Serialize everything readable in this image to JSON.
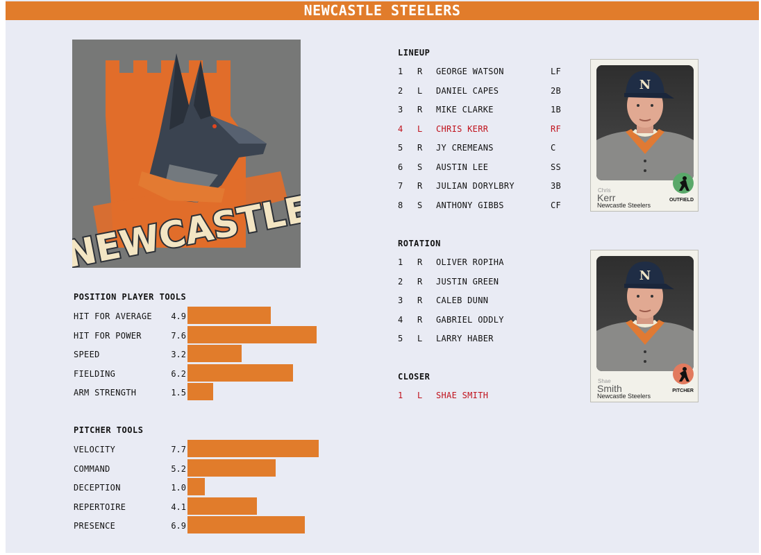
{
  "header": {
    "title": "NEWCASTLE STEELERS"
  },
  "logo": {
    "text": "NEWCASTLE"
  },
  "position_tools": {
    "title": "POSITION PLAYER TOOLS",
    "items": [
      {
        "label": "HIT FOR AVERAGE",
        "value": "4.9"
      },
      {
        "label": "HIT FOR POWER",
        "value": "7.6"
      },
      {
        "label": "SPEED",
        "value": "3.2"
      },
      {
        "label": "FIELDING",
        "value": "6.2"
      },
      {
        "label": "ARM STRENGTH",
        "value": "1.5"
      }
    ]
  },
  "pitcher_tools": {
    "title": "PITCHER TOOLS",
    "items": [
      {
        "label": "VELOCITY",
        "value": "7.7"
      },
      {
        "label": "COMMAND",
        "value": "5.2"
      },
      {
        "label": "DECEPTION",
        "value": "1.0"
      },
      {
        "label": "REPERTOIRE",
        "value": "4.1"
      },
      {
        "label": "PRESENCE",
        "value": "6.9"
      }
    ]
  },
  "lineup": {
    "title": "LINEUP",
    "rows": [
      {
        "num": "1",
        "hand": "R",
        "name": "GEORGE WATSON",
        "pos": "LF",
        "highlight": false
      },
      {
        "num": "2",
        "hand": "L",
        "name": "DANIEL CAPES",
        "pos": "2B",
        "highlight": false
      },
      {
        "num": "3",
        "hand": "R",
        "name": "MIKE CLARKE",
        "pos": "1B",
        "highlight": false
      },
      {
        "num": "4",
        "hand": "L",
        "name": "CHRIS KERR",
        "pos": "RF",
        "highlight": true
      },
      {
        "num": "5",
        "hand": "R",
        "name": "JY CREMEANS",
        "pos": "C",
        "highlight": false
      },
      {
        "num": "6",
        "hand": "S",
        "name": "AUSTIN LEE",
        "pos": "SS",
        "highlight": false
      },
      {
        "num": "7",
        "hand": "R",
        "name": "JULIAN DORYLBRY",
        "pos": "3B",
        "highlight": false
      },
      {
        "num": "8",
        "hand": "S",
        "name": "ANTHONY GIBBS",
        "pos": "CF",
        "highlight": false
      }
    ]
  },
  "rotation": {
    "title": "ROTATION",
    "rows": [
      {
        "num": "1",
        "hand": "R",
        "name": "OLIVER ROPIHA"
      },
      {
        "num": "2",
        "hand": "R",
        "name": "JUSTIN GREEN"
      },
      {
        "num": "3",
        "hand": "R",
        "name": "CALEB DUNN"
      },
      {
        "num": "4",
        "hand": "R",
        "name": "GABRIEL ODDLY"
      },
      {
        "num": "5",
        "hand": "L",
        "name": "LARRY HABER"
      }
    ]
  },
  "closer": {
    "title": "CLOSER",
    "rows": [
      {
        "num": "1",
        "hand": "L",
        "name": "SHAE SMITH",
        "highlight": true
      }
    ]
  },
  "cards": [
    {
      "first": "Chris",
      "last": "Kerr",
      "team": "Newcastle Steelers",
      "position": "OUTFIELD",
      "badge_color": "#5aa86a",
      "cap_letter": "N"
    },
    {
      "first": "Shae",
      "last": "Smith",
      "team": "Newcastle Steelers",
      "position": "PITCHER",
      "badge_color": "#e27a5e",
      "cap_letter": "N"
    }
  ],
  "colors": {
    "accent": "#e17c2b",
    "highlight": "#c0111b",
    "background": "#e9ebf4"
  }
}
